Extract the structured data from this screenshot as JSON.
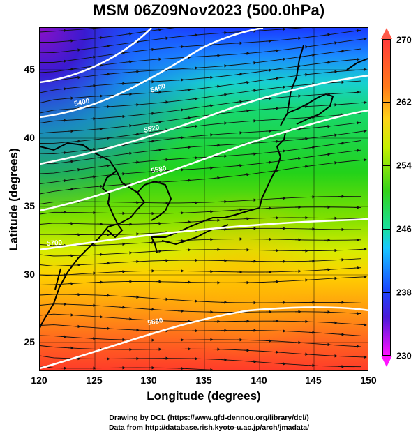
{
  "title": "MSM 06Z09Nov2023 (500.0hPa)",
  "axes": {
    "x_title": "Longitude (degrees)",
    "y_title": "Latitude  (degrees)",
    "x_ticks": [
      "120",
      "125",
      "130",
      "135",
      "140",
      "145",
      "150"
    ],
    "y_ticks": [
      "45",
      "40",
      "35",
      "30",
      "25"
    ],
    "x_range": [
      120,
      150
    ],
    "y_range": [
      22.4,
      47.6
    ]
  },
  "colorbar": {
    "labels": [
      "270",
      "262",
      "254",
      "246",
      "238",
      "230"
    ],
    "range": [
      230,
      270
    ]
  },
  "contours": [
    {
      "label": "5400"
    },
    {
      "label": "5460"
    },
    {
      "label": "5520"
    },
    {
      "label": "5580"
    },
    {
      "label": "5700"
    },
    {
      "label": "5880"
    }
  ],
  "credits": {
    "line1": "Drawing by DCL (https://www.gfd-dennou.org/library/dcl/)",
    "line2": "Data from http://database.rish.kyoto-u.ac.jp/arch/jmadata/"
  }
}
